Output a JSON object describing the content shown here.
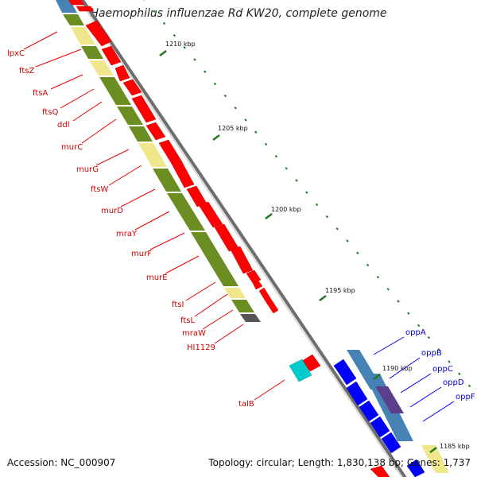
{
  "title": "Haemophilus influenzae Rd KW20, complete genome",
  "accession_label": "Accession: NC_000907",
  "summary_label": "Topology: circular; Length: 1,830,138 bp; Genes: 1,737",
  "colors": {
    "forward_cds": "#ff0000",
    "reverse_cds": "#0000ff",
    "forward_label": "#cc0000",
    "reverse_label": "#0000cc",
    "tick": "#227722",
    "backbone": "#8a8a8a",
    "feature_green": "#6b8e23",
    "feature_pale": "#f0e68c",
    "feature_steel": "#4682b4",
    "trna": "#00cccc"
  },
  "ticks": [
    {
      "label": "1210 kbp"
    },
    {
      "label": "1205 kbp"
    },
    {
      "label": "1200 kbp"
    },
    {
      "label": "1195 kbp"
    },
    {
      "label": "1190 kbp"
    },
    {
      "label": "1185 kbp"
    }
  ],
  "forward_genes": [
    {
      "name": "lpxC"
    },
    {
      "name": "ftsZ"
    },
    {
      "name": "ftsA"
    },
    {
      "name": "ftsQ"
    },
    {
      "name": "ddl"
    },
    {
      "name": "murC"
    },
    {
      "name": "murG"
    },
    {
      "name": "ftsW"
    },
    {
      "name": "murD"
    },
    {
      "name": "mraY"
    },
    {
      "name": "murF"
    },
    {
      "name": "murE"
    },
    {
      "name": "ftsI"
    },
    {
      "name": "ftsL"
    },
    {
      "name": "mraW"
    },
    {
      "name": "HI1129"
    },
    {
      "name": "talB"
    }
  ],
  "reverse_genes": [
    {
      "name": "oppA"
    },
    {
      "name": "oppB"
    },
    {
      "name": "oppC"
    },
    {
      "name": "oppD"
    },
    {
      "name": "oppF"
    }
  ]
}
